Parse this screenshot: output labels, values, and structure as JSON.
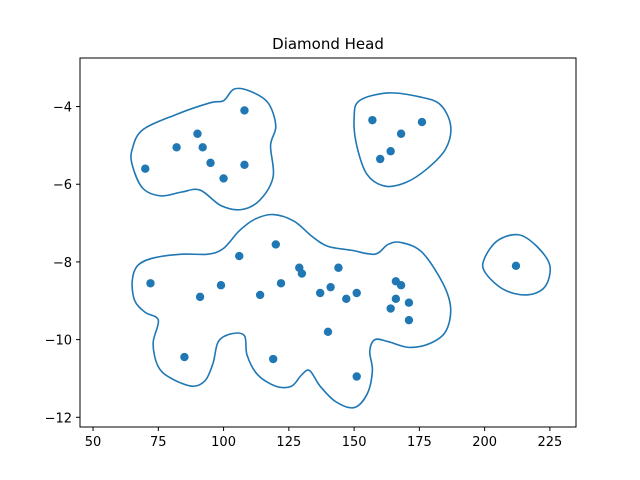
{
  "chart_data": {
    "type": "scatter",
    "title": "Diamond Head",
    "xlabel": "",
    "ylabel": "",
    "xlim": [
      45,
      235
    ],
    "ylim": [
      -12.25,
      -2.75
    ],
    "xticks": [
      50,
      75,
      100,
      125,
      150,
      175,
      200,
      225
    ],
    "yticks": [
      -12,
      -10,
      -8,
      -6,
      -4
    ],
    "grid": false,
    "colors": {
      "series": "#1f77b4",
      "axes": "#000000"
    },
    "points": [
      {
        "x": 108,
        "y": -4.1
      },
      {
        "x": 90,
        "y": -4.7
      },
      {
        "x": 82,
        "y": -5.05
      },
      {
        "x": 92,
        "y": -5.05
      },
      {
        "x": 95,
        "y": -5.45
      },
      {
        "x": 108,
        "y": -5.5
      },
      {
        "x": 70,
        "y": -5.6
      },
      {
        "x": 100,
        "y": -5.85
      },
      {
        "x": 157,
        "y": -4.35
      },
      {
        "x": 176,
        "y": -4.4
      },
      {
        "x": 168,
        "y": -4.7
      },
      {
        "x": 164,
        "y": -5.15
      },
      {
        "x": 160,
        "y": -5.35
      },
      {
        "x": 120,
        "y": -7.55
      },
      {
        "x": 106,
        "y": -7.85
      },
      {
        "x": 129,
        "y": -8.15
      },
      {
        "x": 144,
        "y": -8.15
      },
      {
        "x": 130,
        "y": -8.3
      },
      {
        "x": 72,
        "y": -8.55
      },
      {
        "x": 122,
        "y": -8.55
      },
      {
        "x": 99,
        "y": -8.6
      },
      {
        "x": 141,
        "y": -8.65
      },
      {
        "x": 166,
        "y": -8.5
      },
      {
        "x": 168,
        "y": -8.6
      },
      {
        "x": 137,
        "y": -8.8
      },
      {
        "x": 151,
        "y": -8.8
      },
      {
        "x": 114,
        "y": -8.85
      },
      {
        "x": 91,
        "y": -8.9
      },
      {
        "x": 147,
        "y": -8.95
      },
      {
        "x": 166,
        "y": -8.95
      },
      {
        "x": 171,
        "y": -9.05
      },
      {
        "x": 164,
        "y": -9.2
      },
      {
        "x": 171,
        "y": -9.5
      },
      {
        "x": 140,
        "y": -9.8
      },
      {
        "x": 85,
        "y": -10.45
      },
      {
        "x": 119,
        "y": -10.5
      },
      {
        "x": 151,
        "y": -10.95
      },
      {
        "x": 212,
        "y": -8.1
      }
    ],
    "contours": [
      [
        [
          69,
          -4.6
        ],
        [
          82,
          -4.2
        ],
        [
          95,
          -3.9
        ],
        [
          100,
          -3.85
        ],
        [
          104,
          -3.55
        ],
        [
          110,
          -3.6
        ],
        [
          117,
          -3.9
        ],
        [
          120,
          -4.5
        ],
        [
          118,
          -5.0
        ],
        [
          119,
          -5.8
        ],
        [
          114,
          -6.4
        ],
        [
          107,
          -6.65
        ],
        [
          99,
          -6.55
        ],
        [
          91,
          -6.15
        ],
        [
          84,
          -6.2
        ],
        [
          76,
          -6.3
        ],
        [
          69,
          -6.1
        ],
        [
          65,
          -5.5
        ],
        [
          65,
          -5.1
        ]
      ],
      [
        [
          152,
          -3.85
        ],
        [
          163,
          -3.65
        ],
        [
          175,
          -3.75
        ],
        [
          183,
          -3.95
        ],
        [
          187,
          -4.5
        ],
        [
          185,
          -5.1
        ],
        [
          178,
          -5.6
        ],
        [
          170,
          -5.95
        ],
        [
          162,
          -6.05
        ],
        [
          155,
          -5.75
        ],
        [
          151,
          -5.0
        ],
        [
          150,
          -4.3
        ]
      ],
      [
        [
          73,
          -7.9
        ],
        [
          84,
          -7.8
        ],
        [
          94,
          -7.8
        ],
        [
          100,
          -7.65
        ],
        [
          106,
          -7.2
        ],
        [
          112,
          -6.9
        ],
        [
          119,
          -6.78
        ],
        [
          127,
          -6.95
        ],
        [
          134,
          -7.35
        ],
        [
          140,
          -7.6
        ],
        [
          149,
          -7.7
        ],
        [
          158,
          -7.8
        ],
        [
          163,
          -7.55
        ],
        [
          168,
          -7.5
        ],
        [
          176,
          -7.75
        ],
        [
          184,
          -8.55
        ],
        [
          187,
          -9.2
        ],
        [
          185,
          -9.8
        ],
        [
          179,
          -10.1
        ],
        [
          171,
          -10.2
        ],
        [
          163,
          -10.05
        ],
        [
          158,
          -10.0
        ],
        [
          156,
          -10.3
        ],
        [
          157,
          -10.8
        ],
        [
          155,
          -11.4
        ],
        [
          150,
          -11.75
        ],
        [
          143,
          -11.6
        ],
        [
          137,
          -11.2
        ],
        [
          133,
          -10.8
        ],
        [
          130,
          -10.9
        ],
        [
          126,
          -11.2
        ],
        [
          120,
          -11.2
        ],
        [
          113,
          -10.9
        ],
        [
          109,
          -10.4
        ],
        [
          108,
          -9.9
        ],
        [
          103,
          -9.85
        ],
        [
          98,
          -10.05
        ],
        [
          96,
          -10.6
        ],
        [
          93,
          -11.05
        ],
        [
          88,
          -11.2
        ],
        [
          80,
          -11.0
        ],
        [
          75,
          -10.7
        ],
        [
          73,
          -10.1
        ],
        [
          75,
          -9.5
        ],
        [
          70,
          -9.3
        ],
        [
          66,
          -9.0
        ],
        [
          65,
          -8.5
        ],
        [
          67,
          -8.1
        ]
      ],
      [
        [
          200,
          -7.9
        ],
        [
          205,
          -7.45
        ],
        [
          213,
          -7.3
        ],
        [
          220,
          -7.6
        ],
        [
          225,
          -8.1
        ],
        [
          223,
          -8.65
        ],
        [
          216,
          -8.85
        ],
        [
          207,
          -8.7
        ],
        [
          200,
          -8.25
        ]
      ]
    ]
  }
}
